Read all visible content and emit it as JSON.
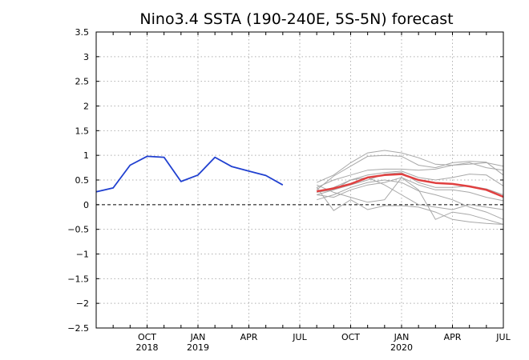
{
  "chart_data": {
    "type": "line",
    "title": "Nino3.4 SSTA (190-240E, 5S-5N) forecast",
    "xlabel": "",
    "ylabel": "",
    "x_range_months": [
      "2018-07",
      "2020-07"
    ],
    "ylim": [
      -2.5,
      3.5
    ],
    "yticks": [
      -2.5,
      -2,
      -1.5,
      -1,
      -0.5,
      0,
      0.5,
      1,
      1.5,
      2,
      2.5,
      3,
      3.5
    ],
    "ytick_labels": [
      "−2.5",
      "−2",
      "−1.5",
      "−1",
      "−0.5",
      "0",
      "0.5",
      "1",
      "1.5",
      "2",
      "2.5",
      "3",
      "3.5"
    ],
    "xticks": [
      {
        "date": "2018-10",
        "label": "OCT",
        "year": "2018"
      },
      {
        "date": "2019-01",
        "label": "JAN",
        "year": "2019"
      },
      {
        "date": "2019-04",
        "label": "APR",
        "year": ""
      },
      {
        "date": "2019-07",
        "label": "JUL",
        "year": ""
      },
      {
        "date": "2019-10",
        "label": "OCT",
        "year": ""
      },
      {
        "date": "2020-01",
        "label": "JAN",
        "year": "2020"
      },
      {
        "date": "2020-04",
        "label": "APR",
        "year": ""
      },
      {
        "date": "2020-07",
        "label": "JUL",
        "year": ""
      }
    ],
    "grid": true,
    "zero_line": true,
    "colors": {
      "observed": "#2040d0",
      "ensemble_mean": "#e04040",
      "members": "#a8a8a8",
      "grid": "#b0b0b0"
    },
    "observed": {
      "x": [
        "2018-07",
        "2018-08",
        "2018-09",
        "2018-10",
        "2018-11",
        "2018-12",
        "2019-01",
        "2019-02",
        "2019-03",
        "2019-04",
        "2019-05",
        "2019-06",
        "2019-07"
      ],
      "values": [
        0.26,
        0.34,
        0.8,
        0.98,
        0.96,
        0.47,
        0.6,
        0.96,
        0.77,
        0.68,
        0.59,
        0.4,
        null
      ]
    },
    "forecast_x": [
      "2019-08",
      "2019-09",
      "2019-10",
      "2019-11",
      "2019-12",
      "2020-01",
      "2020-02",
      "2020-03",
      "2020-04",
      "2020-05",
      "2020-06",
      "2020-07"
    ],
    "ensemble_mean": [
      0.27,
      0.33,
      0.42,
      0.55,
      0.6,
      0.62,
      0.5,
      0.44,
      0.42,
      0.37,
      0.3,
      0.16
    ],
    "members": [
      [
        0.45,
        0.6,
        0.85,
        1.05,
        1.1,
        1.05,
        0.95,
        0.82,
        0.8,
        0.82,
        0.85,
        0.78
      ],
      [
        0.3,
        0.58,
        0.78,
        0.98,
        1.0,
        0.98,
        0.8,
        0.75,
        0.85,
        0.88,
        0.86,
        0.6
      ],
      [
        0.35,
        0.5,
        0.6,
        0.7,
        0.72,
        0.72,
        0.7,
        0.72,
        0.8,
        0.85,
        0.75,
        0.7
      ],
      [
        0.25,
        0.35,
        0.5,
        0.6,
        0.65,
        0.68,
        0.55,
        0.5,
        0.55,
        0.62,
        0.6,
        0.38
      ],
      [
        0.2,
        0.3,
        0.4,
        0.5,
        0.62,
        0.65,
        0.45,
        0.35,
        0.35,
        0.38,
        0.32,
        0.2
      ],
      [
        0.2,
        0.15,
        0.3,
        0.4,
        0.45,
        0.55,
        0.4,
        0.3,
        0.3,
        0.25,
        0.15,
        0.08
      ],
      [
        0.1,
        0.2,
        0.35,
        0.45,
        0.5,
        0.45,
        0.28,
        0.2,
        0.1,
        -0.05,
        -0.15,
        -0.3
      ],
      [
        0.4,
        0.25,
        0.15,
        0.05,
        0.1,
        0.55,
        0.3,
        -0.3,
        -0.15,
        -0.2,
        -0.3,
        -0.4
      ],
      [
        0.35,
        -0.12,
        0.1,
        -0.1,
        -0.02,
        -0.02,
        -0.05,
        -0.15,
        -0.3,
        -0.35,
        -0.38,
        -0.4
      ],
      [
        0.25,
        0.3,
        0.5,
        0.55,
        0.4,
        0.2,
        0.0,
        -0.05,
        -0.1,
        0.0,
        -0.05,
        -0.1
      ]
    ]
  }
}
